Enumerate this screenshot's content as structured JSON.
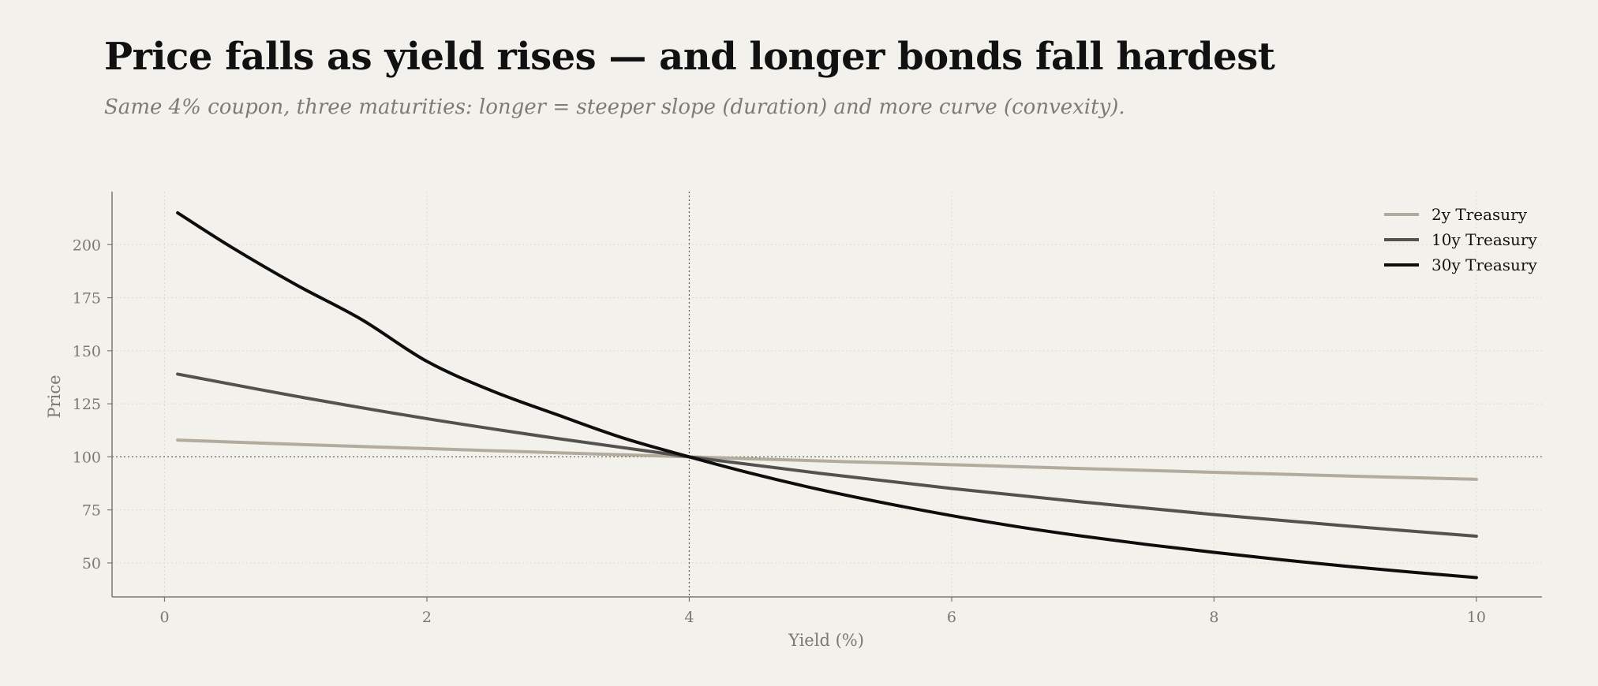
{
  "header": {
    "title": "Price falls as yield rises — and longer bonds fall hardest",
    "subtitle": "Same 4% coupon, three maturities: longer = steeper slope (duration) and more curve (convexity)."
  },
  "colors": {
    "background": "#f3f1eb",
    "axis": "#7a7873",
    "grid": "#dddad3",
    "reference": "#6a6864"
  },
  "chart_data": {
    "type": "line",
    "xlabel": "Yield (%)",
    "ylabel": "Price",
    "xlim": [
      -0.4,
      10.5
    ],
    "ylim": [
      34,
      225
    ],
    "xticks": [
      0,
      2,
      4,
      6,
      8,
      10
    ],
    "yticks": [
      50,
      75,
      100,
      125,
      150,
      175,
      200
    ],
    "grid": true,
    "legend_position": "top-right",
    "reference_lines": {
      "x": 4,
      "y": 100
    },
    "series": [
      {
        "name": "2y Treasury",
        "color": "#b3ab9d",
        "x": [
          0.1,
          1,
          2,
          3,
          4,
          5,
          6,
          7,
          8,
          9,
          10
        ],
        "y": [
          107.9,
          105.9,
          103.9,
          101.9,
          100.0,
          98.1,
          96.3,
          94.5,
          92.7,
          91.0,
          89.4
        ]
      },
      {
        "name": "10y Treasury",
        "color": "#54524f",
        "x": [
          0.1,
          1,
          2,
          3,
          4,
          5,
          6,
          7,
          8,
          9,
          10
        ],
        "y": [
          139.0,
          128.6,
          118.0,
          108.6,
          100.0,
          92.2,
          85.1,
          78.7,
          72.8,
          67.5,
          62.6
        ]
      },
      {
        "name": "30y Treasury",
        "color": "#0d0d0d",
        "x": [
          0.1,
          0.5,
          1,
          1.5,
          2,
          2.5,
          3,
          3.5,
          4,
          4.5,
          5,
          5.5,
          6,
          6.5,
          7,
          7.5,
          8,
          8.5,
          9,
          9.5,
          10
        ],
        "y": [
          215.0,
          199.2,
          181.2,
          164.8,
          145.0,
          131.0,
          119.7,
          108.8,
          100.0,
          91.8,
          84.5,
          78.1,
          72.3,
          67.1,
          62.6,
          58.6,
          55.0,
          51.6,
          48.5,
          45.7,
          43.1
        ]
      }
    ]
  }
}
